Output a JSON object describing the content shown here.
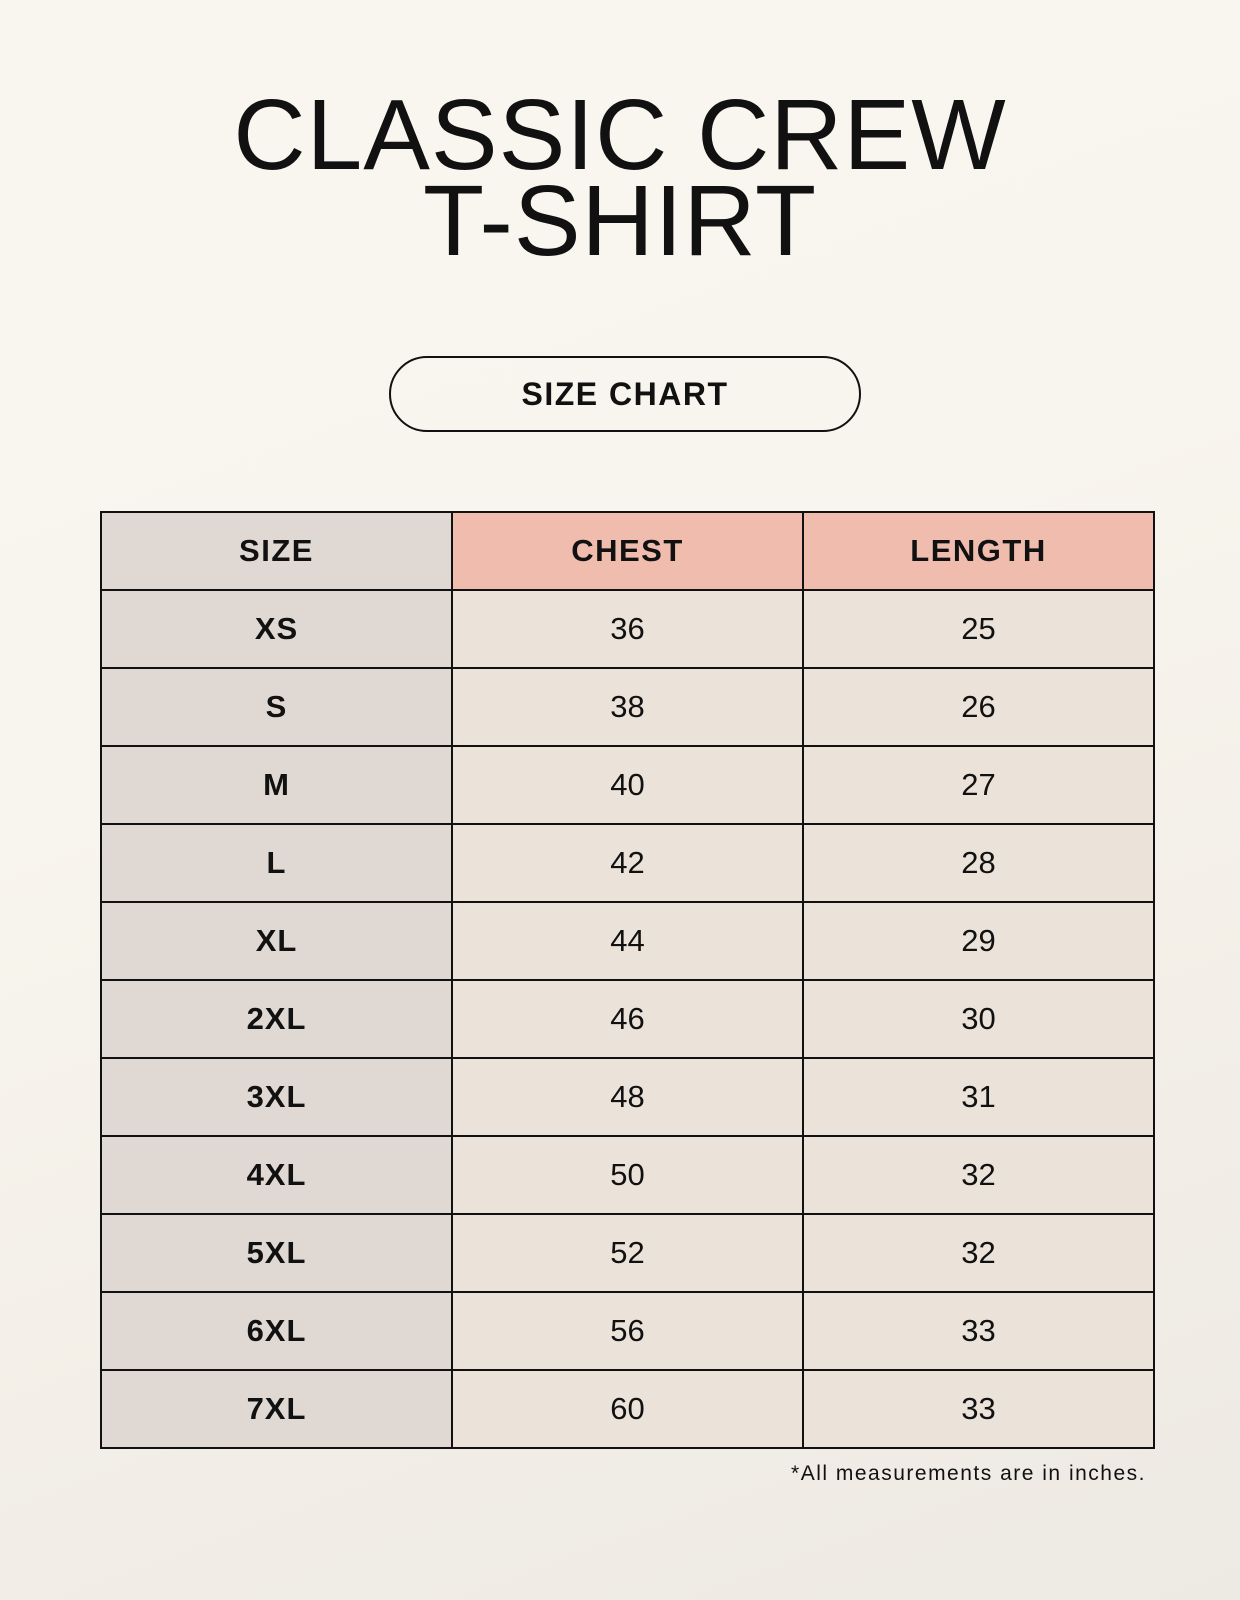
{
  "title": {
    "line1": "CLASSIC CREW",
    "line2": "T-SHIRT"
  },
  "badge": "SIZE CHART",
  "table": {
    "headers": [
      "SIZE",
      "CHEST",
      "LENGTH"
    ],
    "rows": [
      [
        "XS",
        "36",
        "25"
      ],
      [
        "S",
        "38",
        "26"
      ],
      [
        "M",
        "40",
        "27"
      ],
      [
        "L",
        "42",
        "28"
      ],
      [
        "XL",
        "44",
        "29"
      ],
      [
        "2XL",
        "46",
        "30"
      ],
      [
        "3XL",
        "48",
        "31"
      ],
      [
        "4XL",
        "50",
        "32"
      ],
      [
        "5XL",
        "52",
        "32"
      ],
      [
        "6XL",
        "56",
        "33"
      ],
      [
        "7XL",
        "60",
        "33"
      ]
    ]
  },
  "footnote": "*All measurements are in inches.",
  "colors": {
    "size_column": "#e0d9d3",
    "measure_header": "#efbcae",
    "value_cells": "#ebe3d9"
  }
}
